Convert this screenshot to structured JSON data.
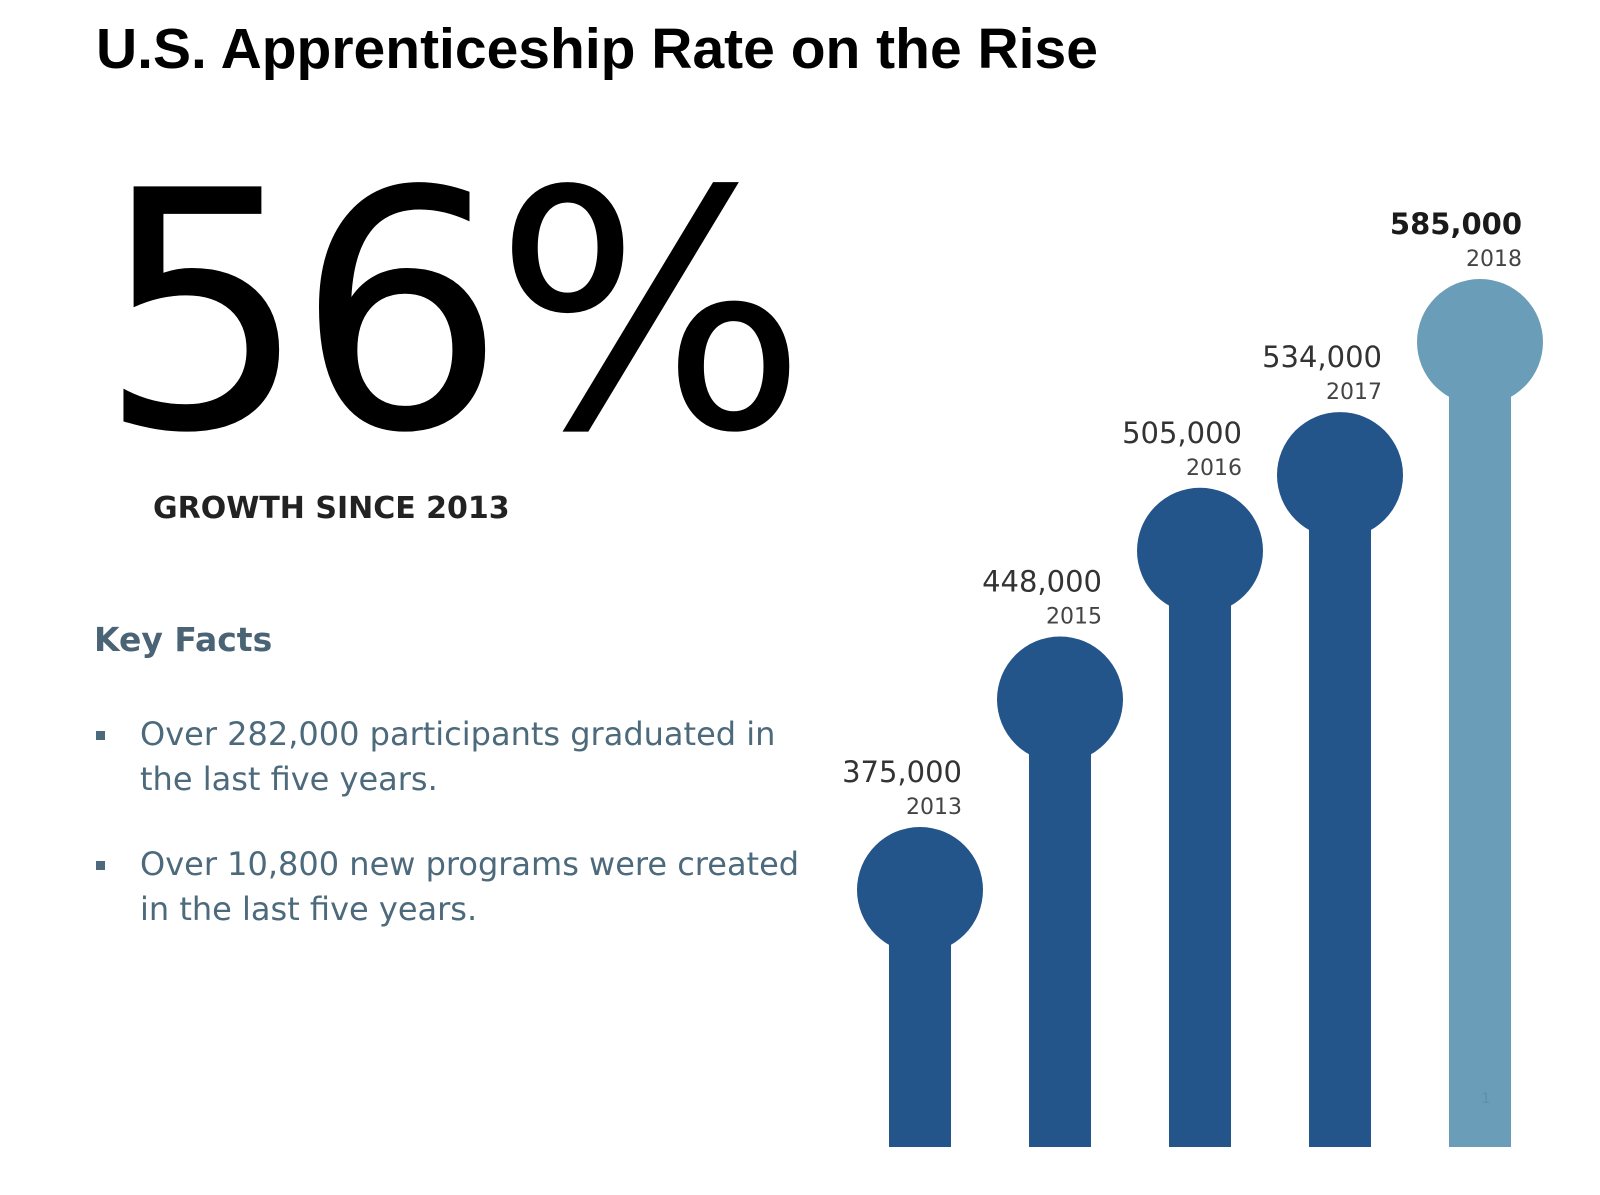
{
  "title": "U.S. Apprenticeship Rate on the Rise",
  "headline_stat": {
    "value": "56%",
    "caption": "GROWTH SINCE 2013"
  },
  "key_facts": {
    "heading": "Key Facts",
    "items": [
      "Over 282,000 participants graduated in the last five years.",
      "Over 10,800 new programs were created in the last five years."
    ]
  },
  "page_number": "1",
  "colors": {
    "bar": "#23558a",
    "highlight_bar": "#6a9db8",
    "facts_text": "#4d6a7c"
  },
  "chart_data": {
    "type": "bar",
    "style": "lollipop",
    "categories": [
      "2013",
      "2015",
      "2016",
      "2017",
      "2018"
    ],
    "values": [
      375000,
      448000,
      505000,
      534000,
      585000
    ],
    "value_labels": [
      "375,000",
      "448,000",
      "505,000",
      "534,000",
      "585,000"
    ],
    "highlight_category": "2018",
    "title": "",
    "xlabel": "",
    "ylabel": "",
    "grid": false,
    "legend": "none"
  }
}
